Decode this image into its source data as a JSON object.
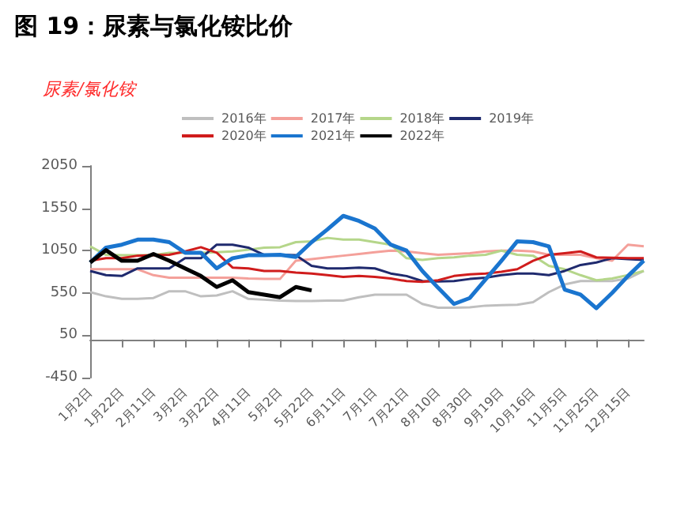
{
  "chart_data": {
    "type": "line",
    "title": "图 19：尿素与氯化铵比价",
    "ylabel": "尿素/氯化铵",
    "categories": [
      "1月2日",
      null,
      "1月22日",
      null,
      "2月11日",
      null,
      "3月2日",
      null,
      "3月22日",
      null,
      "4月11日",
      null,
      "5月2日",
      null,
      "5月22日",
      null,
      "6月11日",
      null,
      "7月1日",
      null,
      "7月21日",
      null,
      "8月10日",
      null,
      "8月30日",
      null,
      "9月19日",
      null,
      "10月16日",
      null,
      "11月5日",
      null,
      "11月25日",
      null,
      "12月15日",
      null
    ],
    "series": [
      {
        "name": "2016年",
        "color": "#bfbfbf",
        "values": [
          560,
          510,
          480,
          480,
          490,
          570,
          570,
          510,
          520,
          570,
          480,
          470,
          460,
          455,
          455,
          460,
          460,
          500,
          530,
          530,
          530,
          420,
          375,
          375,
          380,
          400,
          405,
          410,
          440,
          560,
          650,
          690,
          690,
          690,
          720,
          810
        ]
      },
      {
        "name": "2017年",
        "color": "#f4a09a",
        "values": [
          830,
          830,
          830,
          830,
          760,
          730,
          730,
          730,
          730,
          730,
          720,
          715,
          715,
          930,
          950,
          970,
          990,
          1010,
          1030,
          1050,
          1040,
          1020,
          1000,
          1010,
          1020,
          1040,
          1050,
          1050,
          1040,
          1000,
          1000,
          1000,
          960,
          930,
          1120,
          1100
        ]
      },
      {
        "name": "2018年",
        "color": "#b5d68a",
        "values": [
          1100,
          1000,
          995,
          995,
          995,
          1025,
          1025,
          1025,
          1030,
          1040,
          1060,
          1085,
          1090,
          1150,
          1160,
          1200,
          1180,
          1180,
          1150,
          1120,
          960,
          940,
          960,
          970,
          990,
          1000,
          1050,
          1000,
          990,
          870,
          830,
          760,
          700,
          720,
          760,
          810
        ]
      },
      {
        "name": "2019年",
        "color": "#1f2a6e",
        "values": [
          810,
          760,
          750,
          840,
          840,
          840,
          960,
          960,
          1120,
          1120,
          1085,
          1000,
          1000,
          995,
          870,
          840,
          840,
          850,
          840,
          780,
          750,
          690,
          685,
          690,
          715,
          730,
          760,
          780,
          780,
          760,
          810,
          880,
          910,
          960,
          950,
          940
        ]
      },
      {
        "name": "2020年",
        "color": "#d01c1c",
        "values": [
          930,
          960,
          960,
          990,
          995,
          1000,
          1040,
          1090,
          1025,
          850,
          840,
          810,
          810,
          790,
          780,
          760,
          740,
          750,
          740,
          720,
          690,
          680,
          700,
          750,
          770,
          780,
          800,
          830,
          930,
          1000,
          1020,
          1040,
          970,
          965,
          960,
          960
        ]
      },
      {
        "name": "2021年",
        "color": "#1a75cf",
        "values": [
          910,
          1085,
          1120,
          1180,
          1180,
          1150,
          1025,
          1025,
          840,
          960,
          995,
          995,
          1000,
          975,
          1150,
          1300,
          1460,
          1400,
          1310,
          1120,
          1050,
          810,
          610,
          420,
          490,
          710,
          930,
          1160,
          1150,
          1100,
          590,
          530,
          370,
          550,
          750,
          930
        ]
      },
      {
        "name": "2022年",
        "color": "#000000",
        "values": [
          910,
          1055,
          930,
          930,
          1010,
          930,
          840,
          750,
          620,
          700,
          560,
          530,
          500,
          620,
          580,
          null,
          null,
          null,
          null,
          null,
          null,
          null,
          null,
          null,
          null,
          null,
          null,
          null,
          null,
          null,
          null,
          null,
          null,
          null,
          null,
          null
        ]
      }
    ],
    "ylim": [
      -450,
      2050
    ],
    "yticks": [
      -450,
      50,
      550,
      1050,
      1550,
      2050
    ],
    "grid": false,
    "legend": "top",
    "marker": "none"
  }
}
